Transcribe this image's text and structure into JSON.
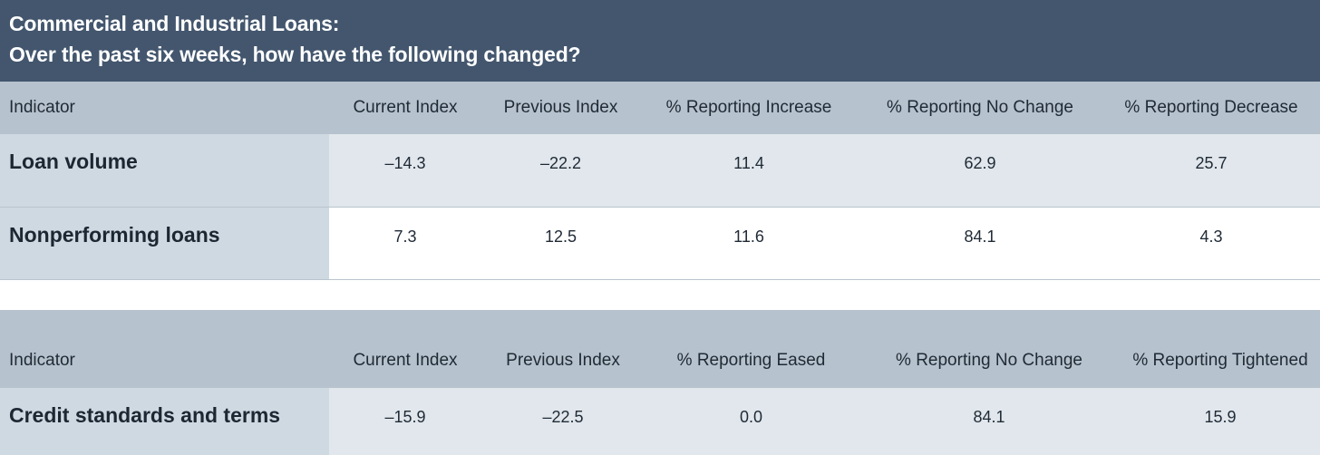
{
  "title": {
    "line1": "Commercial and Industrial Loans:",
    "line2": "Over the past six weeks, how have the following changed?"
  },
  "table1": {
    "headers": [
      "Indicator",
      "Current Index",
      "Previous Index",
      "% Reporting Increase",
      "% Reporting No Change",
      "% Reporting Decrease"
    ],
    "rows": [
      [
        "Loan volume",
        "–14.3",
        "–22.2",
        "11.4",
        "62.9",
        "25.7"
      ],
      [
        "Nonperforming loans",
        "7.3",
        "12.5",
        "11.6",
        "84.1",
        "4.3"
      ]
    ]
  },
  "table2": {
    "headers": [
      "Indicator",
      "Current Index",
      "Previous Index",
      "% Reporting Eased",
      "% Reporting No Change",
      "% Reporting Tightened"
    ],
    "rows": [
      [
        "Credit standards and terms",
        "–15.9",
        "–22.5",
        "0.0",
        "84.1",
        "15.9"
      ]
    ]
  }
}
